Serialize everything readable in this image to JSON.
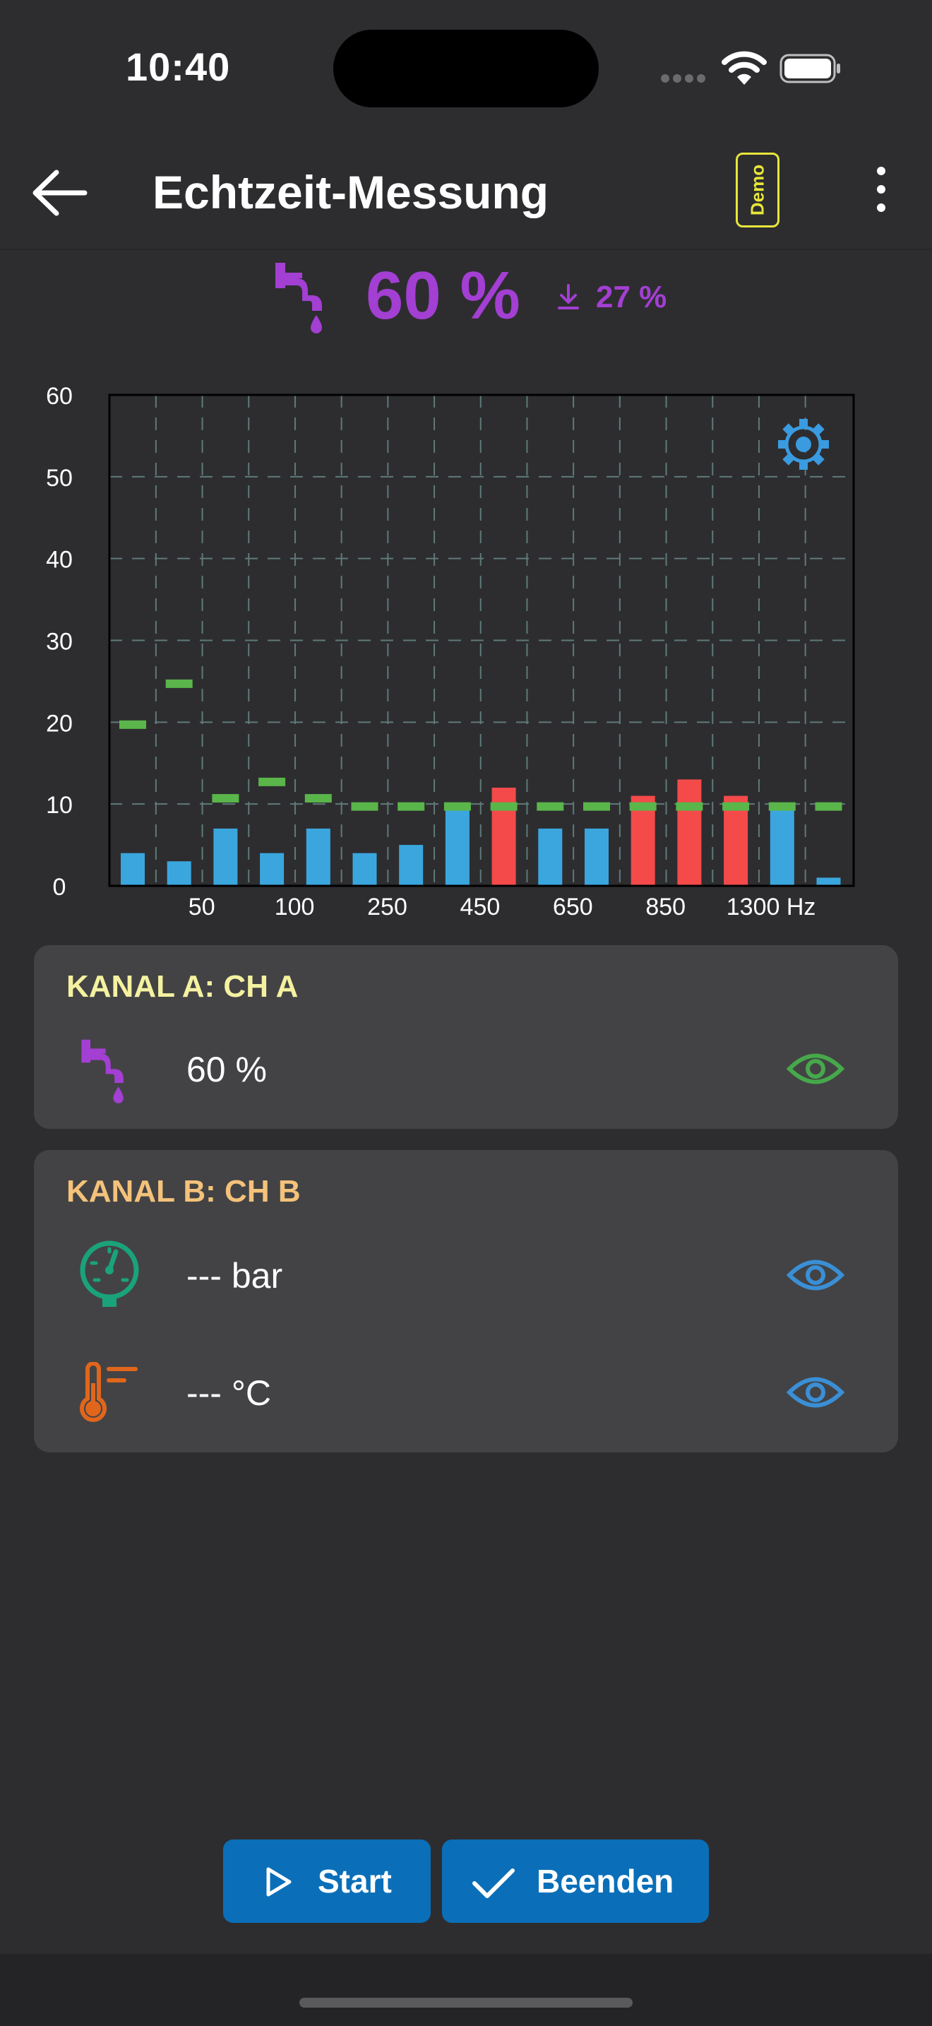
{
  "status_bar": {
    "time": "10:40",
    "icons": [
      "cellular-signal-icon",
      "wifi-icon",
      "battery-icon"
    ]
  },
  "app_bar": {
    "title": "Echtzeit-Messung",
    "badge": "Demo",
    "icons": [
      "back-arrow-icon",
      "more-vert-icon"
    ]
  },
  "summary": {
    "value": "60 %",
    "min_value": "27 %",
    "icons": [
      "leak-faucet-icon",
      "download-arrow-icon"
    ]
  },
  "chart_data": {
    "type": "bar",
    "y_ticks": [
      "60",
      "50",
      "40",
      "30",
      "20",
      "10",
      "0"
    ],
    "ylim": [
      0,
      60
    ],
    "x_tick_labels": [
      "50",
      "100",
      "250",
      "450",
      "650",
      "850",
      "1300 Hz"
    ],
    "grid": true,
    "bars": [
      4,
      3,
      7,
      4,
      7,
      4,
      5,
      10,
      12,
      7,
      7,
      11,
      13,
      11,
      10,
      1
    ],
    "bar_status": [
      "ok",
      "ok",
      "ok",
      "ok",
      "ok",
      "ok",
      "ok",
      "ok",
      "alarm",
      "ok",
      "ok",
      "alarm",
      "alarm",
      "alarm",
      "ok",
      "ok"
    ],
    "thresholds": [
      19.7,
      24.7,
      10.7,
      12.7,
      10.7,
      9.7,
      9.7,
      9.7,
      9.7,
      9.7,
      9.7,
      9.7,
      9.7,
      9.7,
      9.7,
      9.7
    ],
    "colors": {
      "ok": "#3ba6de",
      "alarm": "#f44a4a",
      "threshold": "#5ab54a",
      "grid": "#5f7a78"
    },
    "settings_icon": "gear-icon"
  },
  "channel_a": {
    "title": "KANAL A: CH A",
    "title_color": "#f4f2a0",
    "rows": [
      {
        "icon": "leak-faucet-icon",
        "value": "60 %",
        "eye_icon": "eye-icon",
        "eye_color": "#46a84a"
      }
    ]
  },
  "channel_b": {
    "title": "KANAL B: CH B",
    "title_color": "#f4c27a",
    "rows": [
      {
        "icon": "pressure-gauge-icon",
        "value": "--- bar",
        "eye_icon": "eye-icon",
        "eye_color": "#3a8fd6"
      },
      {
        "icon": "thermometer-icon",
        "value": "--- °C",
        "eye_icon": "eye-icon",
        "eye_color": "#3a8fd6"
      }
    ]
  },
  "buttons": {
    "start": {
      "label": "Start",
      "icon": "play-outline-icon"
    },
    "end": {
      "label": "Beenden",
      "icon": "checkmark-icon"
    }
  },
  "colors": {
    "accent_purple": "#a33fd2",
    "button_blue": "#0a6fb8",
    "background": "#2d2d30",
    "card": "#434345"
  }
}
